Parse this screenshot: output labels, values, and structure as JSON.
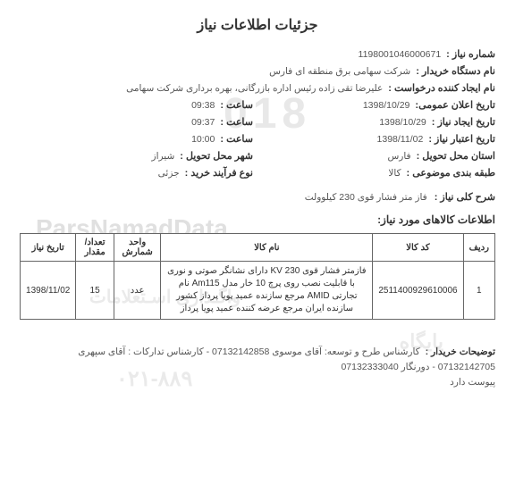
{
  "title": "جزئیات اطلاعات نیاز",
  "fields": {
    "need_no_label": "شماره نیاز :",
    "need_no": "1198001046000671",
    "buyer_label": "نام دستگاه خریدار :",
    "buyer": "شرکت سهامی برق منطقه ای فارس",
    "requester_label": "نام ایجاد کننده درخواست :",
    "requester": "علیرضا تقی زاده رئیس اداره بازرگانی، بهره برداری شرکت سهامی",
    "pub_date_label": "تاریخ اعلان عمومی:",
    "pub_date": "1398/10/29",
    "pub_time_label": "ساعت :",
    "pub_time": "09:38",
    "create_date_label": "تاریخ ایجاد نیاز :",
    "create_date": "1398/10/29",
    "create_time_label": "ساعت :",
    "create_time": "09:37",
    "valid_date_label": "تاریخ اعتبار نیاز :",
    "valid_date": "1398/11/02",
    "valid_time_label": "ساعت :",
    "valid_time": "10:00",
    "province_label": "استان محل تحویل :",
    "province": "فارس",
    "city_label": "شهر محل تحویل :",
    "city": "شیراز",
    "subject_label": "طبقه بندی موضوعی :",
    "subject": "کالا",
    "process_label": "نوع فرآیند خرید :",
    "process": "جزئی"
  },
  "desc": {
    "label": "شرح کلی نیاز :",
    "text": "فاز متر فشار قوی 230 کیلوولت"
  },
  "items_section_label": "اطلاعات کالاهای مورد نیاز:",
  "table": {
    "headers": {
      "row": "ردیف",
      "code": "کد کالا",
      "name": "نام کالا",
      "unit": "واحد شمارش",
      "qty": "تعداد/ مقدار",
      "date": "تاریخ نیاز"
    },
    "rows": [
      {
        "row": "1",
        "code": "2511400929610006",
        "name": "فازمتر فشار قوی 230 KV دارای نشانگر صوتی و نوری با قابلیت نصب روی پرچ 10 خار مدل Am115 نام تجارتی AMID مرجع سازنده عمید پویا پرداز کشور سازنده ایران مرجع عرضه کننده عمید پویا پرداز",
        "unit": "عدد",
        "qty": "15",
        "date": "1398/11/02"
      }
    ]
  },
  "footer": {
    "label": "توضیحات خریدار :",
    "line1": "کارشناس طرح و توسعه: آقای موسوی 07132142858 - کارشناس تدارکات : آقای سپهری",
    "line2": "07132142705 - دورنگار 07132333040",
    "line3": "پیوست دارد"
  },
  "watermarks": {
    "w1": "018",
    "w2": "ParsNamadData",
    "w3": "واگـذاری اسـتعلامات",
    "w4": "پایگاه",
    "w5": "۰۲۱-۸۸۹"
  }
}
